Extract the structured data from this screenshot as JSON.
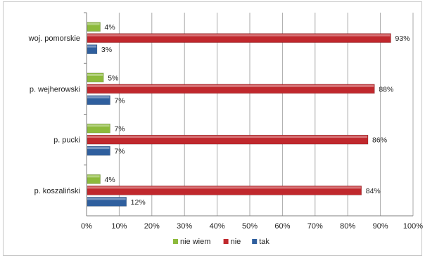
{
  "chart_data": {
    "type": "bar",
    "orientation": "horizontal",
    "categories": [
      "woj. pomorskie",
      "p. wejherowski",
      "p. pucki",
      "p. koszaliński"
    ],
    "series": [
      {
        "name": "nie wiem",
        "values": [
          4,
          5,
          7,
          4
        ],
        "labels": [
          "4%",
          "5%",
          "7%",
          "4%"
        ],
        "color": "#8dba3c"
      },
      {
        "name": "nie",
        "values": [
          93,
          88,
          86,
          84
        ],
        "labels": [
          "93%",
          "88%",
          "86%",
          "84%"
        ],
        "color": "#c0282d"
      },
      {
        "name": "tak",
        "values": [
          3,
          7,
          7,
          12
        ],
        "labels": [
          "3%",
          "7%",
          "7%",
          "12%"
        ],
        "color": "#2f5f9e"
      }
    ],
    "xlim": [
      0,
      100
    ],
    "ticks": [
      "0%",
      "10%",
      "20%",
      "30%",
      "40%",
      "50%",
      "60%",
      "70%",
      "80%",
      "90%",
      "100%"
    ],
    "grid": true,
    "legend_position": "bottom",
    "legend": [
      {
        "name": "nie wiem",
        "color": "#8dba3c"
      },
      {
        "name": "nie",
        "color": "#c0282d"
      },
      {
        "name": "tak",
        "color": "#2f5f9e"
      }
    ]
  }
}
